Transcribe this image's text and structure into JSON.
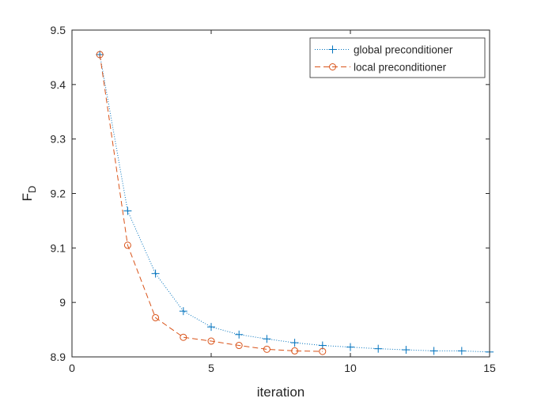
{
  "chart_data": {
    "type": "line",
    "xlabel": "iteration",
    "ylabel": "F",
    "ylabel_subscript": "D",
    "xlim": [
      0,
      15
    ],
    "ylim": [
      8.9,
      9.5
    ],
    "xticks": [
      "0",
      "5",
      "10",
      "15"
    ],
    "yticks": [
      "8.9",
      "9",
      "9.1",
      "9.2",
      "9.3",
      "9.4",
      "9.5"
    ],
    "grid": false,
    "legend_position": "top-right",
    "series": [
      {
        "name": "global preconditioner",
        "color": "#0072bd",
        "line_style": "dotted",
        "marker": "plus",
        "x": [
          1,
          2,
          3,
          4,
          5,
          6,
          7,
          8,
          9,
          10,
          11,
          12,
          13,
          14,
          15
        ],
        "y": [
          9.455,
          9.168,
          9.053,
          8.984,
          8.955,
          8.941,
          8.933,
          8.926,
          8.921,
          8.918,
          8.915,
          8.913,
          8.911,
          8.911,
          8.909
        ]
      },
      {
        "name": "local preconditioner",
        "color": "#d95319",
        "line_style": "dashed",
        "marker": "circle",
        "x": [
          1,
          2,
          3,
          4,
          5,
          6,
          7,
          8,
          9
        ],
        "y": [
          9.455,
          9.105,
          8.972,
          8.936,
          8.929,
          8.921,
          8.914,
          8.911,
          8.91
        ]
      }
    ]
  }
}
